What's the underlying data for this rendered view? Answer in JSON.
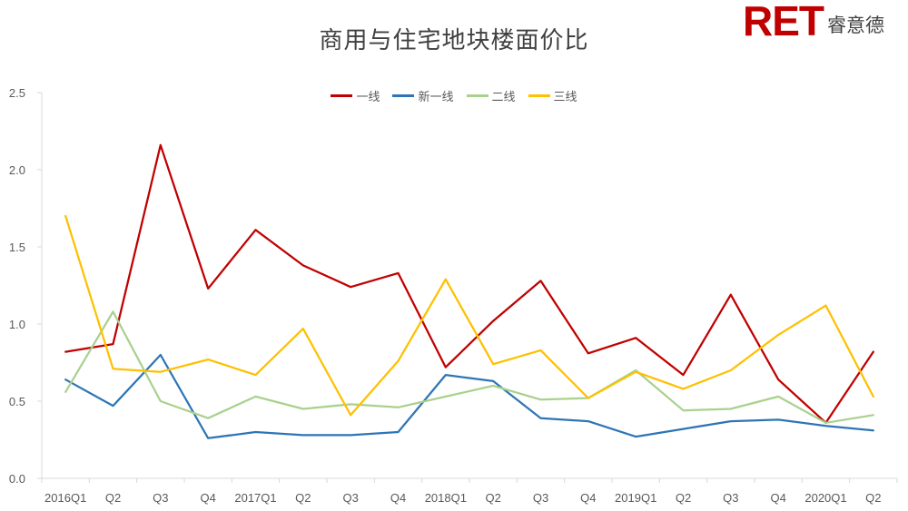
{
  "chart_data": {
    "type": "line",
    "title": "商用与住宅地块楼面价比",
    "categories": [
      "2016Q1",
      "Q2",
      "Q3",
      "Q4",
      "2017Q1",
      "Q2",
      "Q3",
      "Q4",
      "2018Q1",
      "Q2",
      "Q3",
      "Q4",
      "2019Q1",
      "Q2",
      "Q3",
      "Q4",
      "2020Q1",
      "Q2"
    ],
    "y_ticks": [
      "0.0",
      "0.5",
      "1.0",
      "1.5",
      "2.0",
      "2.5"
    ],
    "ylim": [
      0,
      2.5
    ],
    "legend_position": "top",
    "grid": false,
    "series": [
      {
        "name": "一线",
        "color": "#c00000",
        "values": [
          0.82,
          0.87,
          2.16,
          1.23,
          1.61,
          1.38,
          1.24,
          1.33,
          0.72,
          1.02,
          1.28,
          0.81,
          0.91,
          0.67,
          1.19,
          0.64,
          0.36,
          0.82
        ]
      },
      {
        "name": "新一线",
        "color": "#2e75b6",
        "values": [
          0.64,
          0.47,
          0.8,
          0.26,
          0.3,
          0.28,
          0.28,
          0.3,
          0.67,
          0.63,
          0.39,
          0.37,
          0.27,
          0.32,
          0.37,
          0.38,
          0.34,
          0.31
        ]
      },
      {
        "name": "二线",
        "color": "#a9d18e",
        "values": [
          0.56,
          1.08,
          0.5,
          0.39,
          0.53,
          0.45,
          0.48,
          0.46,
          0.53,
          0.6,
          0.51,
          0.52,
          0.7,
          0.44,
          0.45,
          0.53,
          0.36,
          0.41
        ]
      },
      {
        "name": "三线",
        "color": "#ffc000",
        "values": [
          1.7,
          0.71,
          0.69,
          0.77,
          0.67,
          0.97,
          0.41,
          0.76,
          1.29,
          0.74,
          0.83,
          0.52,
          0.69,
          0.58,
          0.7,
          0.93,
          1.12,
          0.53
        ]
      }
    ]
  },
  "logo": {
    "mark": "RET",
    "text": "睿意德"
  }
}
